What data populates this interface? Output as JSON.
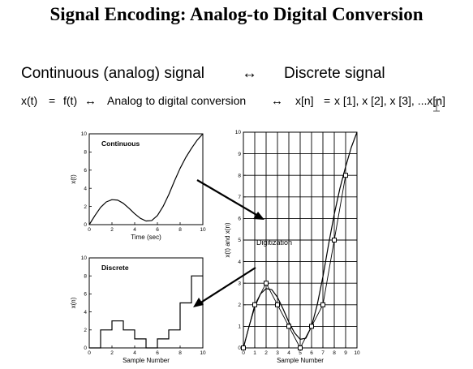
{
  "slide": {
    "title": "Signal Encoding: Analog-to Digital Conversion",
    "line1": {
      "left": "Continuous (analog) signal",
      "arrow": "↔",
      "right": "Discrete signal"
    },
    "line2": {
      "xt": "x(t)",
      "eq1": "=",
      "ft": "f(t)",
      "arrow1": "↔",
      "middle": "Analog to digital conversion",
      "arrow2": "↔",
      "xn": "x[n]",
      "eq2": "=",
      "seq": "x [1], x [2], x [3], ...x[n]"
    },
    "annotation": "Digitization",
    "cursor_icon": "text-cursor-icon"
  },
  "chart_data": [
    {
      "type": "line",
      "title": "Continuous",
      "xlabel": "Time (sec)",
      "ylabel": "x(t)",
      "xlim": [
        0,
        10
      ],
      "ylim": [
        0,
        10
      ],
      "xticks": [
        0,
        2,
        4,
        6,
        8,
        10
      ],
      "yticks": [
        0,
        2,
        4,
        6,
        8,
        10
      ],
      "grid": false,
      "x": [
        0,
        0.5,
        1,
        1.5,
        2,
        2.5,
        3,
        3.5,
        4,
        4.5,
        5,
        5.5,
        6,
        6.5,
        7,
        7.5,
        8,
        8.5,
        9,
        9.5,
        10
      ],
      "y": [
        0,
        1.0,
        1.9,
        2.5,
        2.75,
        2.7,
        2.35,
        1.8,
        1.2,
        0.7,
        0.4,
        0.45,
        1.0,
        2.0,
        3.3,
        4.8,
        6.2,
        7.4,
        8.4,
        9.3,
        10
      ]
    },
    {
      "type": "step",
      "title": "Discrete",
      "xlabel": "Sample Number",
      "ylabel": "x(n)",
      "xlim": [
        0,
        10
      ],
      "ylim": [
        0,
        10
      ],
      "xticks": [
        0,
        2,
        4,
        6,
        8,
        10
      ],
      "yticks": [
        0,
        2,
        4,
        6,
        8,
        10
      ],
      "grid": false,
      "x": [
        0,
        1,
        2,
        3,
        4,
        5,
        6,
        7,
        8,
        9
      ],
      "y": [
        0,
        2,
        3,
        2,
        1,
        0,
        1,
        2,
        5,
        8
      ]
    },
    {
      "type": "line",
      "title": "",
      "xlabel": "Sample Number",
      "ylabel": "x(t) and x(n)",
      "xlim": [
        0,
        10
      ],
      "ylim": [
        0,
        10
      ],
      "xticks": [
        0,
        1,
        2,
        3,
        4,
        5,
        6,
        7,
        8,
        9,
        10
      ],
      "yticks": [
        0,
        1,
        2,
        3,
        4,
        5,
        6,
        7,
        8,
        9,
        10
      ],
      "grid": true,
      "series": [
        {
          "x": [
            0,
            0.5,
            1,
            1.5,
            2,
            2.5,
            3,
            3.5,
            4,
            4.5,
            5,
            5.5,
            6,
            6.5,
            7,
            7.5,
            8,
            8.5,
            9,
            9.5,
            10
          ],
          "y": [
            0,
            1.0,
            1.9,
            2.5,
            2.75,
            2.7,
            2.35,
            1.8,
            1.2,
            0.7,
            0.4,
            0.45,
            1.0,
            2.0,
            3.3,
            4.8,
            6.2,
            7.4,
            8.4,
            9.3,
            10
          ]
        },
        {
          "x": [
            0,
            1,
            2,
            3,
            4,
            5,
            6,
            7,
            8,
            9
          ],
          "y": [
            0,
            2,
            3,
            2,
            1,
            0,
            1,
            2,
            5,
            8
          ],
          "marker": "square"
        }
      ]
    }
  ]
}
